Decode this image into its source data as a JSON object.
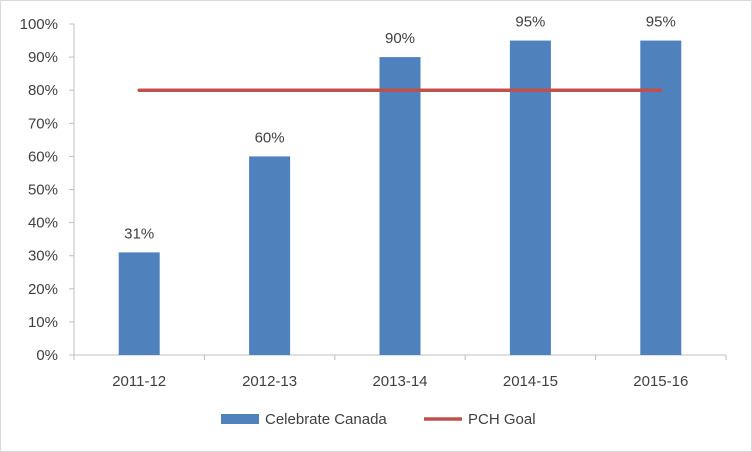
{
  "chart_data": {
    "type": "bar",
    "categories": [
      "2011-12",
      "2012-13",
      "2013-14",
      "2014-15",
      "2015-16"
    ],
    "series": [
      {
        "name": "Celebrate Canada",
        "type": "bar",
        "values": [
          31,
          60,
          90,
          95,
          95
        ],
        "color": "#4f81bd"
      },
      {
        "name": "PCH Goal",
        "type": "line",
        "values": [
          80,
          80,
          80,
          80,
          80
        ],
        "color": "#c0504d"
      }
    ],
    "data_labels": [
      "31%",
      "60%",
      "90%",
      "95%",
      "95%"
    ],
    "ylim": [
      0,
      100
    ],
    "y_ticks": [
      0,
      10,
      20,
      30,
      40,
      50,
      60,
      70,
      80,
      90,
      100
    ],
    "y_tick_labels": [
      "0%",
      "10%",
      "20%",
      "30%",
      "40%",
      "50%",
      "60%",
      "70%",
      "80%",
      "90%",
      "100%"
    ],
    "grid": false,
    "legend_position": "bottom"
  }
}
